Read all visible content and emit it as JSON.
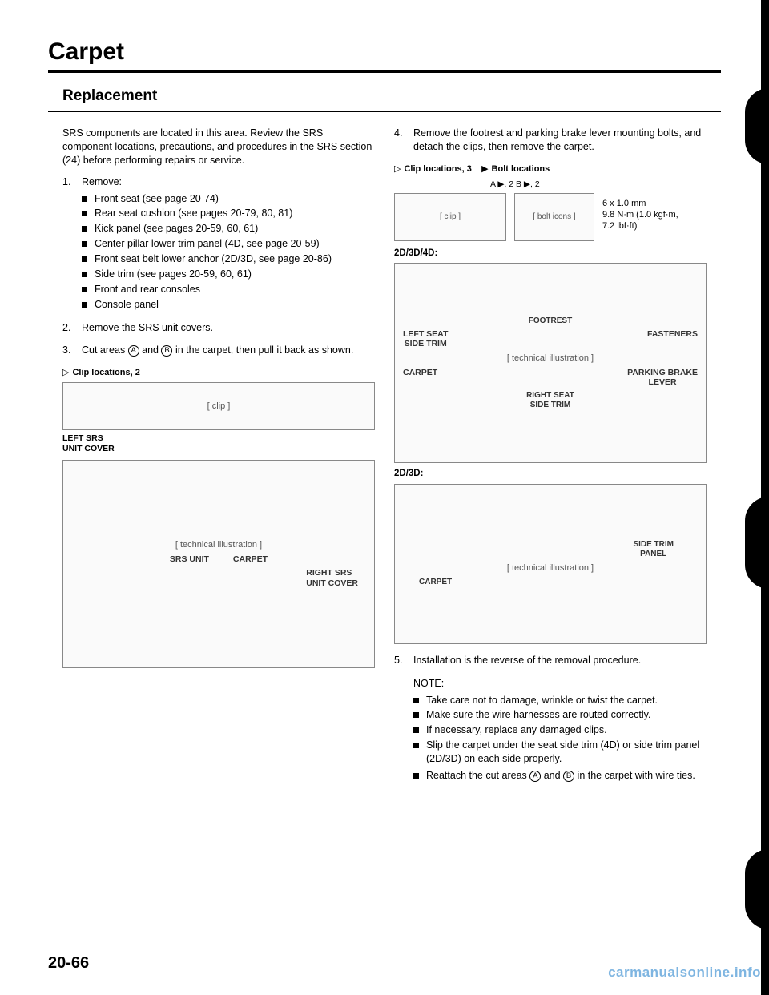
{
  "title": "Carpet",
  "subtitle": "Replacement",
  "intro": "SRS components are located in this area. Review the SRS component locations, precautions, and procedures in the SRS section (24) before performing repairs or service.",
  "step1_label": "Remove:",
  "step1_items": [
    "Front seat (see page 20-74)",
    "Rear seat cushion (see pages 20-79, 80, 81)",
    "Kick panel (see pages 20-59, 60, 61)",
    "Center pillar lower trim panel (4D, see page 20-59)",
    "Front seat belt lower anchor (2D/3D, see page 20-86)",
    "Side trim (see pages 20-59, 60, 61)",
    "Front and rear consoles",
    "Console panel"
  ],
  "step2": "Remove the SRS unit covers.",
  "step3_pre": "Cut areas ",
  "step3_a": "A",
  "step3_mid": " and ",
  "step3_b": "B",
  "step3_post": " in the carpet, then pull it back as shown.",
  "clip_caption_left": "Clip locations, 2",
  "fig_left_small_label1": "LEFT SRS",
  "fig_left_small_label2": "UNIT COVER",
  "fig_left_big_labels": {
    "srs_unit": "SRS UNIT",
    "carpet": "CARPET",
    "right_srs": "RIGHT SRS",
    "unit_cover": "UNIT COVER"
  },
  "step4": "Remove the footrest and parking brake lever mounting bolts, and detach the clips, then remove the carpet.",
  "clip_caption_right": "Clip locations, 3",
  "bolt_caption_right": "Bolt locations",
  "bolt_sub": "A ▶, 2    B ▶, 2",
  "torque1": "6 x 1.0 mm",
  "torque2": "9.8 N·m (1.0 kgf·m,",
  "torque3": "7.2 lbf·ft)",
  "model_2d3d4d": "2D/3D/4D:",
  "labels_big": {
    "footrest": "FOOTREST",
    "fasteners": "FASTENERS",
    "left_seat": "LEFT SEAT",
    "side_trim": "SIDE TRIM",
    "carpet": "CARPET",
    "parking": "PARKING BRAKE",
    "lever": "LEVER",
    "right_seat": "RIGHT SEAT",
    "side_trim2": "SIDE TRIM"
  },
  "model_2d3d": "2D/3D:",
  "labels_small": {
    "side_trim_panel1": "SIDE TRIM",
    "side_trim_panel2": "PANEL",
    "carpet": "CARPET"
  },
  "step5": "Installation is the reverse of the removal procedure.",
  "note_label": "NOTE:",
  "note_items_pre": [
    "Take care not to damage, wrinkle or twist the carpet.",
    "Make sure the wire harnesses are routed correctly.",
    "If necessary, replace any damaged clips.",
    "Slip the carpet under the seat side trim (4D) or side trim panel (2D/3D) on each side properly."
  ],
  "note_last_pre": "Reattach the cut areas ",
  "note_last_mid": " and ",
  "note_last_post": " in the carpet with wire ties.",
  "page_number": "20-66",
  "watermark": "carmanualsonline.info",
  "fig_placeholder": "[ technical illustration ]",
  "clip_placeholder": "[ clip ]",
  "bolt_placeholder": "[ bolt icons ]"
}
